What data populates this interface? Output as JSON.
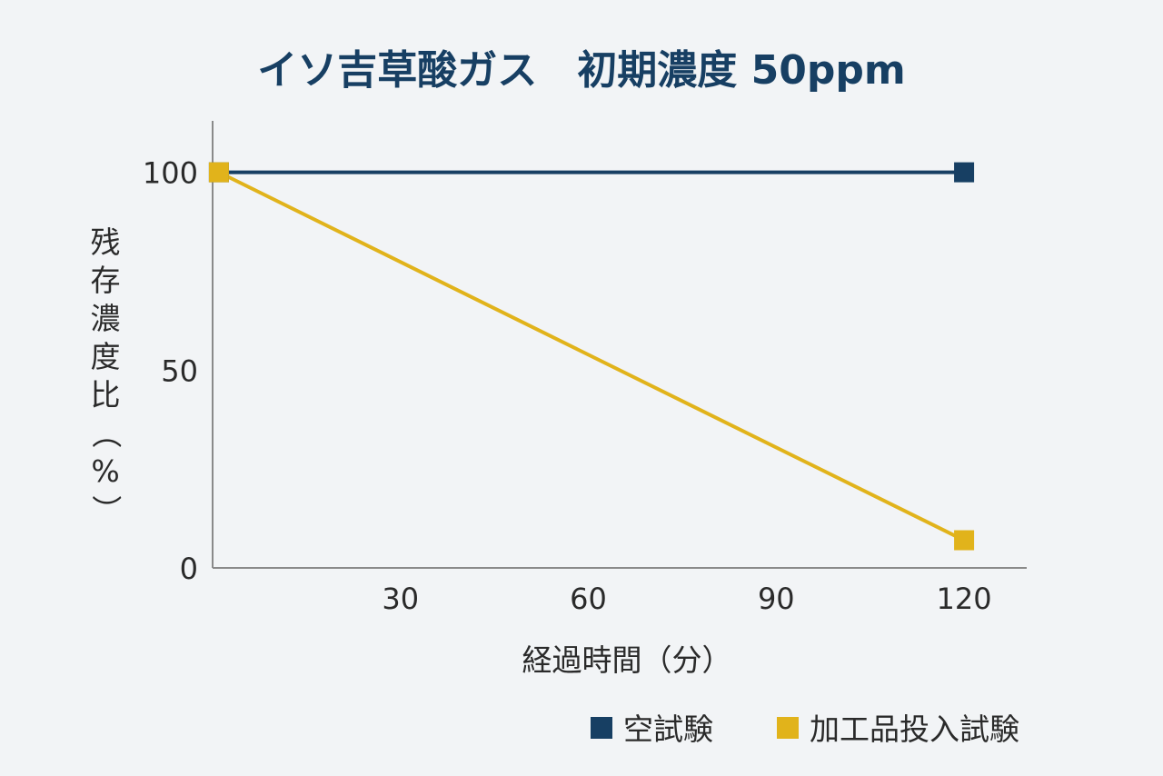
{
  "chart_data": {
    "type": "line",
    "title": "イソ吉草酸ガス　初期濃度 50ppm",
    "xlabel": "経過時間（分）",
    "ylabel": "残存濃度比（%）",
    "x_ticks": [
      30,
      60,
      90,
      120
    ],
    "y_ticks": [
      0,
      50,
      100
    ],
    "xlim": [
      0,
      130
    ],
    "ylim": [
      0,
      113
    ],
    "grid": false,
    "legend_position": "bottom-right",
    "series": [
      {
        "name": "空試験",
        "color": "#173f63",
        "x": [
          1,
          120
        ],
        "y": [
          100,
          100
        ]
      },
      {
        "name": "加工品投入試験",
        "color": "#e1b31b",
        "x": [
          1,
          120
        ],
        "y": [
          100,
          7
        ]
      }
    ]
  }
}
